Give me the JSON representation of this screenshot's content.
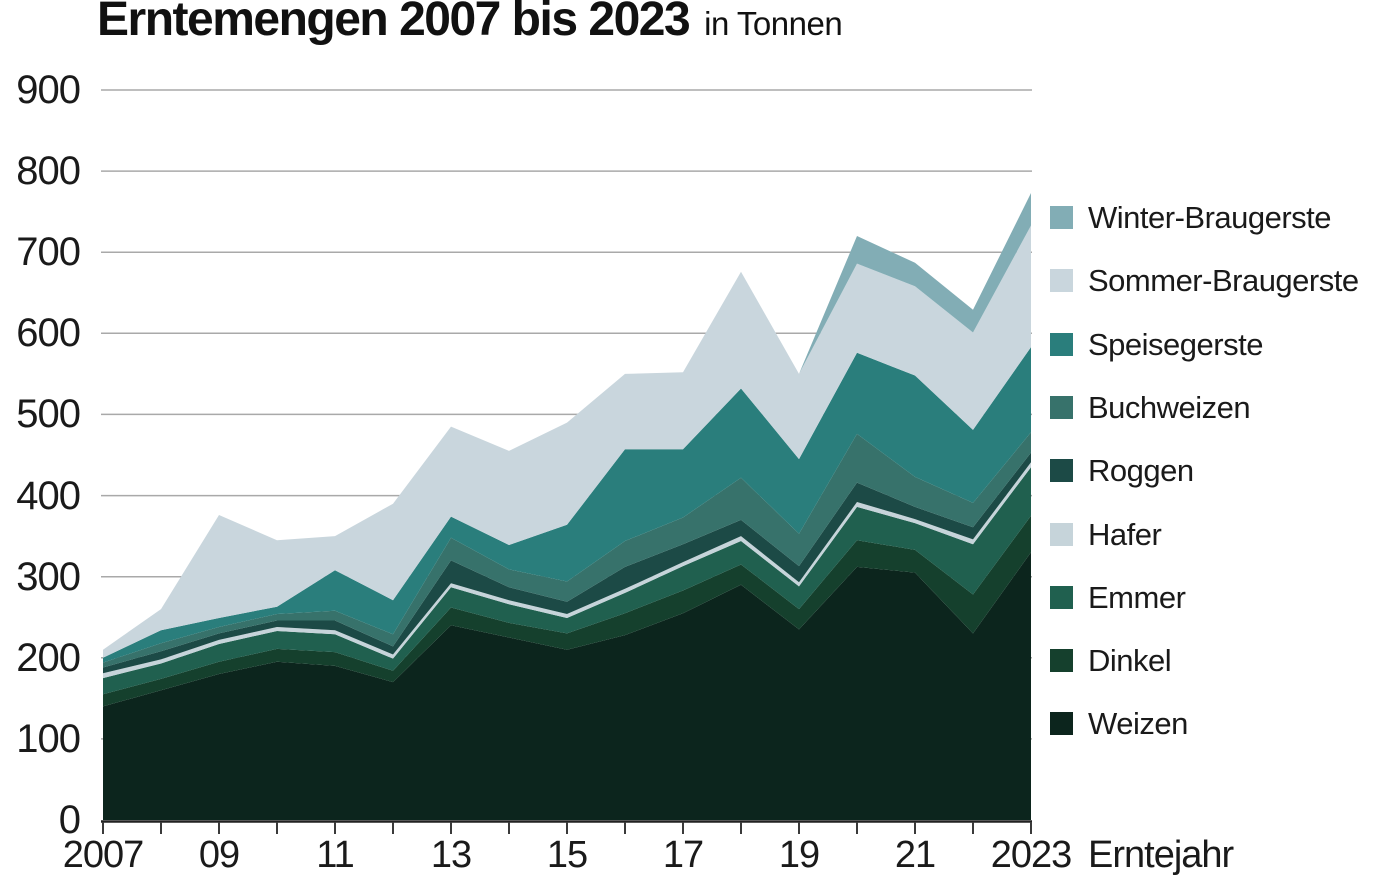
{
  "title": {
    "main": "Erntemengen 2007 bis 2023",
    "suffix": "in Tonnen"
  },
  "axes": {
    "y_ticks": [
      900,
      800,
      700,
      600,
      500,
      400,
      300,
      200,
      100,
      0
    ],
    "x_tick_labels": [
      {
        "year": 2007,
        "label": "2007"
      },
      {
        "year": 2009,
        "label": "09"
      },
      {
        "year": 2011,
        "label": "11"
      },
      {
        "year": 2013,
        "label": "13"
      },
      {
        "year": 2015,
        "label": "15"
      },
      {
        "year": 2017,
        "label": "17"
      },
      {
        "year": 2019,
        "label": "19"
      },
      {
        "year": 2021,
        "label": "21"
      },
      {
        "year": 2023,
        "label": "2023"
      }
    ],
    "x_axis_title": "Erntejahr"
  },
  "chart_data": {
    "type": "area",
    "stacked": true,
    "title": "Erntemengen 2007 bis 2023 in Tonnen",
    "xlabel": "Erntejahr",
    "ylabel": "Tonnen",
    "ylim": [
      0,
      900
    ],
    "xlim": [
      2007,
      2023
    ],
    "grid": true,
    "legend_position": "right",
    "x": [
      2007,
      2008,
      2009,
      2010,
      2011,
      2012,
      2013,
      2014,
      2015,
      2016,
      2017,
      2018,
      2019,
      2020,
      2021,
      2022,
      2023
    ],
    "series": [
      {
        "name": "Weizen",
        "color": "#0c251d",
        "values": [
          140,
          160,
          180,
          195,
          190,
          170,
          240,
          225,
          210,
          228,
          255,
          290,
          235,
          312,
          305,
          230,
          330
        ]
      },
      {
        "name": "Dinkel",
        "color": "#15402d",
        "values": [
          15,
          14,
          15,
          16,
          17,
          14,
          22,
          18,
          20,
          27,
          28,
          25,
          25,
          33,
          28,
          48,
          45
        ]
      },
      {
        "name": "Emmer",
        "color": "#20604f",
        "values": [
          20,
          19,
          22,
          22,
          22,
          15,
          25,
          23,
          19,
          25,
          30,
          29,
          28,
          41,
          33,
          62,
          60
        ]
      },
      {
        "name": "Hafer",
        "color": "#c6d4da",
        "values": [
          6,
          5,
          5,
          5,
          5,
          5,
          5,
          5,
          5,
          5,
          5,
          6,
          5,
          6,
          5,
          6,
          6
        ]
      },
      {
        "name": "Roggen",
        "color": "#1c4a46",
        "values": [
          7,
          10,
          8,
          8,
          12,
          10,
          28,
          16,
          15,
          27,
          22,
          20,
          20,
          24,
          15,
          15,
          12
        ]
      },
      {
        "name": "Buchweizen",
        "color": "#37726b",
        "values": [
          6,
          10,
          8,
          8,
          12,
          15,
          28,
          22,
          25,
          32,
          33,
          52,
          40,
          60,
          37,
          30,
          25
        ]
      },
      {
        "name": "Speisegerste",
        "color": "#2a7e7c",
        "values": [
          6,
          16,
          11,
          9,
          50,
          42,
          26,
          30,
          70,
          113,
          84,
          110,
          92,
          100,
          125,
          90,
          105
        ]
      },
      {
        "name": "Sommer-Braugerste",
        "color": "#c9d6dd",
        "values": [
          10,
          26,
          127,
          82,
          42,
          119,
          111,
          116,
          126,
          93,
          95,
          144,
          105,
          110,
          110,
          120,
          150
        ]
      },
      {
        "name": "Winter-Braugerste",
        "color": "#82adb5",
        "values": [
          0,
          0,
          0,
          0,
          0,
          0,
          0,
          0,
          0,
          0,
          0,
          0,
          0,
          34,
          29,
          28,
          40
        ]
      }
    ]
  },
  "legend": {
    "items": [
      {
        "label": "Winter-Braugerste",
        "color": "#82adb5"
      },
      {
        "label": "Sommer-Braugerste",
        "color": "#c9d6dd"
      },
      {
        "label": "Speisegerste",
        "color": "#2a7e7c"
      },
      {
        "label": "Buchweizen",
        "color": "#37726b"
      },
      {
        "label": "Roggen",
        "color": "#1c4a46"
      },
      {
        "label": "Hafer",
        "color": "#c6d4da"
      },
      {
        "label": "Emmer",
        "color": "#20604f"
      },
      {
        "label": "Dinkel",
        "color": "#15402d"
      },
      {
        "label": "Weizen",
        "color": "#0c251d"
      }
    ]
  },
  "style": {
    "gridline_color": "#a9a9a9",
    "axis_color": "#222222",
    "tick_color": "#3a3a3a",
    "text_color": "#1a1a1a"
  }
}
